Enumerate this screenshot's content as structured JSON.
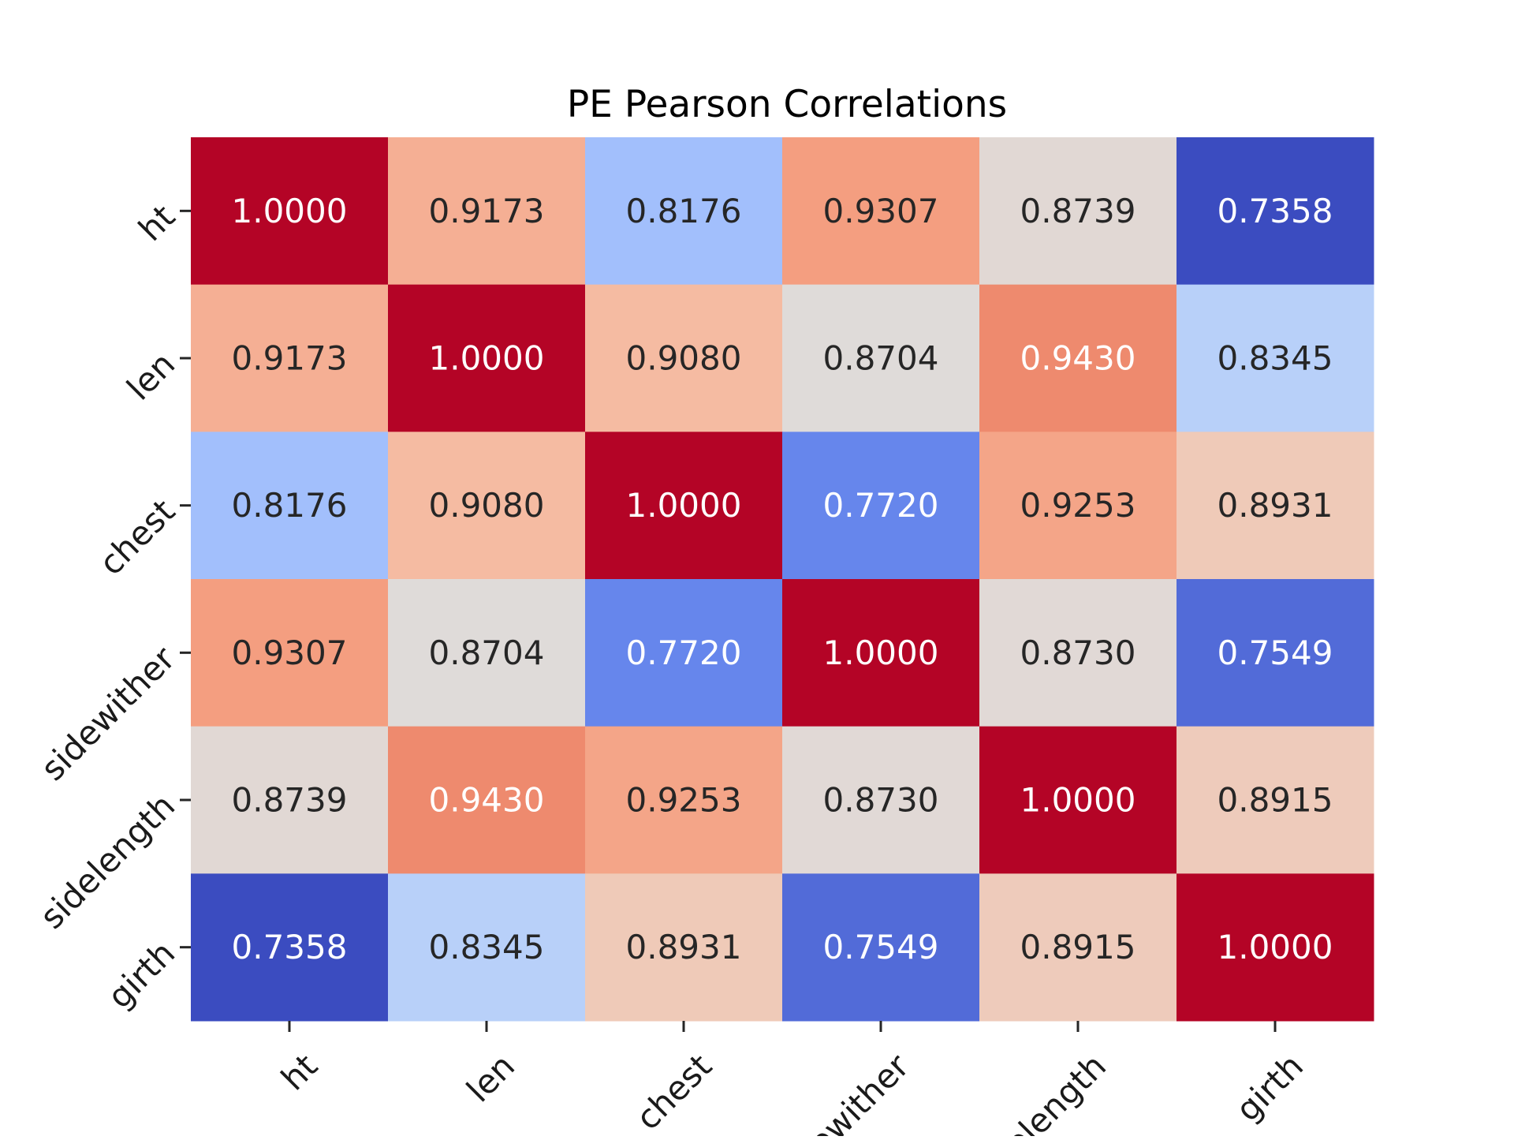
{
  "chart_data": {
    "type": "heatmap",
    "title": "PE Pearson Correlations",
    "xlabel": "",
    "ylabel": "",
    "x_categories": [
      "ht",
      "len",
      "chest",
      "sidewither",
      "sidelength",
      "girth"
    ],
    "y_categories": [
      "ht",
      "len",
      "chest",
      "sidewither",
      "sidelength",
      "girth"
    ],
    "values": [
      [
        1.0,
        0.9173,
        0.8176,
        0.9307,
        0.8739,
        0.7358
      ],
      [
        0.9173,
        1.0,
        0.908,
        0.8704,
        0.943,
        0.8345
      ],
      [
        0.8176,
        0.908,
        1.0,
        0.772,
        0.9253,
        0.8931
      ],
      [
        0.9307,
        0.8704,
        0.772,
        1.0,
        0.873,
        0.7549
      ],
      [
        0.8739,
        0.943,
        0.9253,
        0.873,
        1.0,
        0.8915
      ],
      [
        0.7358,
        0.8345,
        0.8931,
        0.7549,
        0.8915,
        1.0
      ]
    ],
    "value_format": "4 decimals",
    "colormap": "coolwarm",
    "color_range": [
      0.7358,
      1.0
    ],
    "colorbar": false,
    "grid": false,
    "tick_label_rotation": 45
  }
}
